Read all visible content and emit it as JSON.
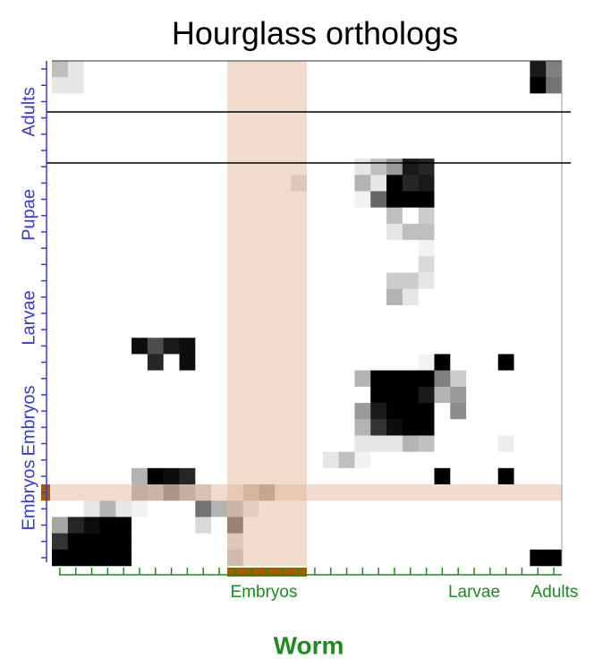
{
  "chart_data": {
    "type": "heatmap",
    "title": "Hourglass orthologs",
    "xlabel": "Worm",
    "ylabels": [
      "Adults",
      "Pupae",
      "Larvae",
      "Embryos",
      "Embryos"
    ],
    "xlabels": [
      "Embryos",
      "Larvae",
      "Adults"
    ],
    "highlight": {
      "columns": [
        11,
        12,
        13,
        14,
        15
      ],
      "row": 26
    },
    "values": [
      [
        0.25,
        0.1,
        0,
        0,
        0,
        0,
        0,
        0,
        0,
        0,
        0,
        0,
        0,
        0,
        0,
        0,
        0,
        0,
        0,
        0,
        0,
        0,
        0,
        0,
        0,
        0,
        0,
        0,
        0,
        0,
        0.9,
        0.5
      ],
      [
        0.1,
        0.1,
        0,
        0,
        0,
        0,
        0,
        0,
        0,
        0,
        0,
        0,
        0,
        0,
        0,
        0,
        0,
        0,
        0,
        0,
        0,
        0,
        0,
        0,
        0,
        0,
        0,
        0,
        0,
        0,
        1,
        0.55
      ],
      [
        0,
        0,
        0,
        0,
        0,
        0,
        0,
        0,
        0,
        0,
        0,
        0,
        0,
        0,
        0,
        0,
        0,
        0,
        0,
        0,
        0,
        0,
        0,
        0,
        0,
        0,
        0,
        0,
        0,
        0,
        0,
        0
      ],
      [
        0,
        0,
        0,
        0,
        0,
        0,
        0,
        0,
        0,
        0,
        0,
        0,
        0,
        0,
        0,
        0,
        0,
        0,
        0,
        0,
        0,
        0,
        0,
        0,
        0,
        0,
        0,
        0,
        0,
        0,
        0,
        0
      ],
      [
        0,
        0,
        0,
        0,
        0,
        0,
        0,
        0,
        0,
        0,
        0,
        0,
        0,
        0,
        0,
        0,
        0,
        0,
        0,
        0,
        0,
        0,
        0,
        0,
        0,
        0,
        0,
        0,
        0,
        0,
        0,
        0
      ],
      [
        0,
        0,
        0,
        0,
        0,
        0,
        0,
        0,
        0,
        0,
        0,
        0,
        0,
        0,
        0,
        0,
        0,
        0,
        0,
        0,
        0,
        0,
        0,
        0,
        0,
        0,
        0,
        0,
        0,
        0,
        0,
        0
      ],
      [
        0,
        0,
        0,
        0,
        0,
        0,
        0,
        0,
        0,
        0,
        0,
        0,
        0,
        0,
        0,
        0,
        0,
        0,
        0,
        0.1,
        0.25,
        0.4,
        0.9,
        0.85,
        0,
        0,
        0,
        0,
        0,
        0,
        0,
        0
      ],
      [
        0,
        0,
        0,
        0,
        0,
        0,
        0,
        0,
        0,
        0,
        0,
        0,
        0,
        0,
        0,
        0.15,
        0,
        0,
        0,
        0.3,
        0.1,
        1,
        0.85,
        0.9,
        0,
        0,
        0,
        0,
        0,
        0,
        0,
        0
      ],
      [
        0,
        0,
        0,
        0,
        0,
        0,
        0,
        0,
        0,
        0,
        0,
        0,
        0,
        0,
        0,
        0,
        0,
        0,
        0,
        0.05,
        0.6,
        1,
        1,
        1,
        0,
        0,
        0,
        0,
        0,
        0,
        0,
        0
      ],
      [
        0,
        0,
        0,
        0,
        0,
        0,
        0,
        0,
        0,
        0,
        0,
        0,
        0,
        0,
        0,
        0,
        0,
        0,
        0,
        0,
        0,
        0.25,
        0,
        0.2,
        0,
        0,
        0,
        0,
        0,
        0,
        0,
        0
      ],
      [
        0,
        0,
        0,
        0,
        0,
        0,
        0,
        0,
        0,
        0,
        0,
        0,
        0,
        0,
        0,
        0,
        0,
        0,
        0,
        0,
        0,
        0.1,
        0.25,
        0.25,
        0,
        0,
        0,
        0,
        0,
        0,
        0,
        0
      ],
      [
        0,
        0,
        0,
        0,
        0,
        0,
        0,
        0,
        0,
        0,
        0,
        0,
        0,
        0,
        0,
        0,
        0,
        0,
        0,
        0,
        0,
        0,
        0,
        0.05,
        0,
        0,
        0,
        0,
        0,
        0,
        0,
        0
      ],
      [
        0,
        0,
        0,
        0,
        0,
        0,
        0,
        0,
        0,
        0,
        0,
        0,
        0,
        0,
        0,
        0,
        0,
        0,
        0,
        0,
        0,
        0,
        0,
        0.15,
        0,
        0,
        0,
        0,
        0,
        0,
        0,
        0
      ],
      [
        0,
        0,
        0,
        0,
        0,
        0,
        0,
        0,
        0,
        0,
        0,
        0,
        0,
        0,
        0,
        0,
        0,
        0,
        0,
        0,
        0,
        0.2,
        0.2,
        0.1,
        0,
        0,
        0,
        0,
        0,
        0,
        0,
        0
      ],
      [
        0,
        0,
        0,
        0,
        0,
        0,
        0,
        0,
        0,
        0,
        0,
        0,
        0,
        0,
        0,
        0,
        0,
        0,
        0,
        0,
        0,
        0.3,
        0.1,
        0,
        0,
        0,
        0,
        0,
        0,
        0,
        0,
        0
      ],
      [
        0,
        0,
        0,
        0,
        0,
        0,
        0,
        0,
        0,
        0,
        0,
        0,
        0,
        0,
        0,
        0,
        0,
        0,
        0,
        0,
        0,
        0,
        0,
        0,
        0,
        0,
        0,
        0,
        0,
        0,
        0,
        0
      ],
      [
        0,
        0,
        0,
        0,
        0,
        0,
        0,
        0,
        0,
        0,
        0,
        0,
        0,
        0,
        0,
        0,
        0,
        0,
        0,
        0,
        0,
        0,
        0,
        0,
        0,
        0,
        0,
        0,
        0,
        0,
        0,
        0
      ],
      [
        0,
        0,
        0,
        0,
        0,
        0.95,
        0.7,
        0.9,
        0.95,
        0,
        0,
        0,
        0,
        0,
        0,
        0,
        0,
        0,
        0,
        0,
        0,
        0,
        0,
        0,
        0,
        0,
        0,
        0,
        0,
        0,
        0,
        0
      ],
      [
        0,
        0,
        0,
        0,
        0,
        0,
        0.85,
        0,
        0.95,
        0,
        0,
        0,
        0,
        0,
        0,
        0,
        0,
        0,
        0,
        0,
        0,
        0,
        0,
        0.05,
        1,
        0,
        0,
        0,
        1,
        0,
        0,
        0
      ],
      [
        0,
        0,
        0,
        0,
        0,
        0,
        0,
        0,
        0,
        0,
        0,
        0,
        0,
        0,
        0,
        0,
        0,
        0,
        0,
        0.3,
        1,
        1,
        1,
        1,
        0.5,
        0.2,
        0,
        0,
        0,
        0,
        0,
        0
      ],
      [
        0,
        0,
        0,
        0,
        0,
        0,
        0,
        0,
        0,
        0,
        0,
        0,
        0,
        0,
        0,
        0,
        0,
        0,
        0,
        0,
        1,
        1,
        1,
        0.9,
        0.3,
        0.4,
        0,
        0,
        0,
        0,
        0,
        0
      ],
      [
        0,
        0,
        0,
        0,
        0,
        0,
        0,
        0,
        0,
        0,
        0,
        0,
        0,
        0,
        0,
        0,
        0,
        0,
        0,
        0.4,
        0.9,
        1,
        1,
        1,
        0,
        0.45,
        0,
        0,
        0,
        0,
        0,
        0
      ],
      [
        0,
        0,
        0,
        0,
        0,
        0,
        0,
        0,
        0,
        0,
        0,
        0,
        0,
        0,
        0,
        0,
        0,
        0,
        0,
        0.3,
        0.8,
        0.95,
        1,
        1,
        0,
        0,
        0,
        0,
        0,
        0,
        0,
        0
      ],
      [
        0,
        0,
        0,
        0,
        0,
        0,
        0,
        0,
        0,
        0,
        0,
        0,
        0,
        0,
        0,
        0,
        0,
        0,
        0,
        0.1,
        0.1,
        0.1,
        0.3,
        0.25,
        0,
        0,
        0,
        0,
        0.07,
        0,
        0,
        0
      ],
      [
        0,
        0,
        0,
        0,
        0,
        0,
        0,
        0,
        0,
        0,
        0,
        0,
        0,
        0,
        0,
        0,
        0,
        0.1,
        0.25,
        0.05,
        0,
        0,
        0,
        0,
        0,
        0,
        0,
        0,
        0,
        0,
        0,
        0
      ],
      [
        0,
        0,
        0,
        0,
        0,
        0.3,
        1,
        0.95,
        0.85,
        0,
        0,
        0,
        0,
        0,
        0,
        0,
        0,
        0,
        0,
        0,
        0,
        0,
        0,
        0,
        1,
        0,
        0,
        0,
        1,
        0,
        0,
        0
      ],
      [
        0,
        0,
        0,
        0,
        0,
        0.35,
        0.3,
        0.55,
        0.35,
        0.2,
        0,
        0,
        0.3,
        0.55,
        0,
        0,
        0,
        0,
        0,
        0,
        0,
        0,
        0,
        0,
        0,
        0,
        0,
        0,
        0,
        0,
        0,
        0
      ],
      [
        0,
        0,
        0.1,
        0.3,
        0.1,
        0.05,
        0,
        0,
        0,
        0.55,
        0.3,
        0.3,
        0.1,
        0,
        0,
        0,
        0,
        0,
        0,
        0,
        0,
        0,
        0,
        0,
        0,
        0,
        0,
        0,
        0,
        0,
        0,
        0
      ],
      [
        0.35,
        0.85,
        0.95,
        1,
        1,
        0,
        0,
        0,
        0,
        0.15,
        0,
        0.7,
        0,
        0,
        0,
        0,
        0,
        0,
        0,
        0,
        0,
        0,
        0,
        0,
        0,
        0,
        0,
        0,
        0,
        0,
        0,
        0
      ],
      [
        0.8,
        1,
        1,
        1,
        1,
        0,
        0,
        0,
        0,
        0,
        0,
        0.15,
        0,
        0,
        0,
        0,
        0,
        0,
        0,
        0,
        0,
        0,
        0,
        0,
        0,
        0,
        0,
        0,
        0,
        0,
        0,
        0
      ],
      [
        1,
        1,
        1,
        1,
        1,
        0,
        0,
        0,
        0,
        0,
        0,
        0.25,
        0,
        0,
        0,
        0,
        0,
        0,
        0,
        0,
        0,
        0,
        0,
        0,
        0,
        0,
        0,
        0,
        0,
        0,
        1,
        1
      ]
    ]
  }
}
